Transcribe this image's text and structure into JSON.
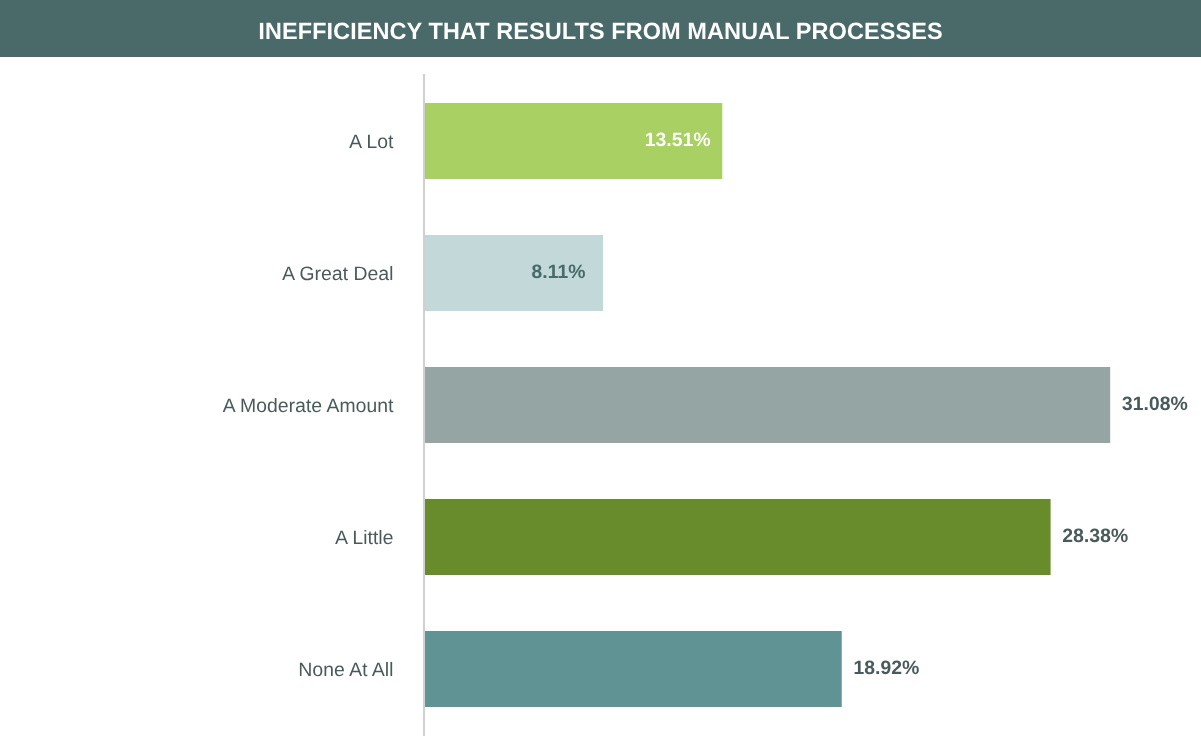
{
  "chart_data": {
    "type": "bar",
    "orientation": "horizontal",
    "title": "INEFFICIENCY THAT RESULTS FROM MANUAL PROCESSES",
    "categories": [
      "A Lot",
      "A Great Deal",
      "A Moderate Amount",
      "A Little",
      "None At All"
    ],
    "values": [
      13.51,
      8.11,
      31.08,
      28.38,
      18.92
    ],
    "colors": [
      "#a8d062",
      "#c2d8d9",
      "#94a5a3",
      "#688b2b",
      "#5f9394"
    ],
    "value_labels": [
      "13.51%",
      "8.11%",
      "31.08%",
      "28.38%",
      "18.92%"
    ],
    "grid": false,
    "legend": false
  }
}
